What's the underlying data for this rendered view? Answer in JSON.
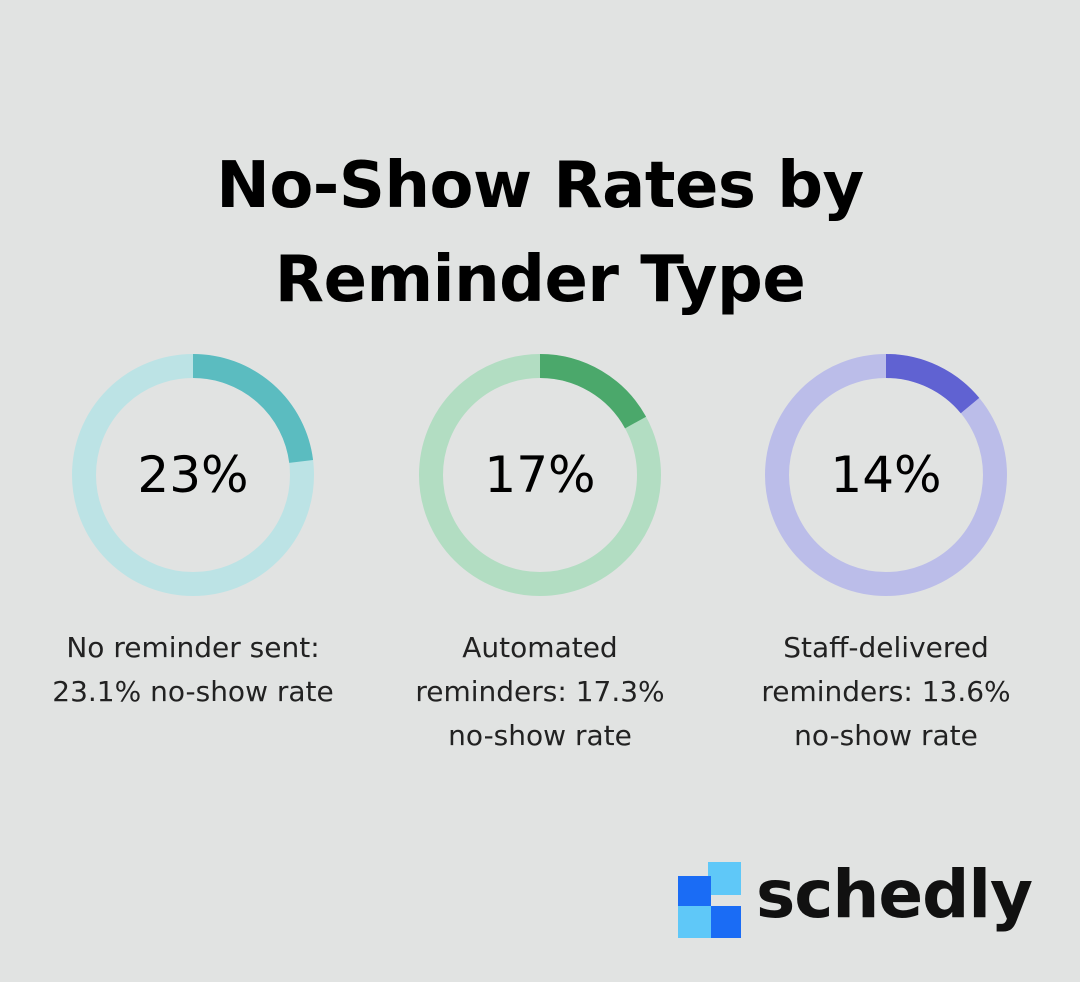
{
  "title": {
    "line1": "No-Show Rates by",
    "line2": "Reminder Type"
  },
  "chart_data": [
    {
      "type": "pie",
      "value": 23,
      "center_label": "23%",
      "caption": [
        "No reminder sent:",
        "23.1% no-show rate"
      ],
      "colors": {
        "value": "#5bbcc0",
        "track": "#bce3e5"
      }
    },
    {
      "type": "pie",
      "value": 17,
      "center_label": "17%",
      "caption": [
        "Automated",
        "reminders: 17.3%",
        "no-show rate"
      ],
      "colors": {
        "value": "#4ba86b",
        "track": "#b2ddc2"
      }
    },
    {
      "type": "pie",
      "value": 14,
      "center_label": "14%",
      "caption": [
        "Staff-delivered",
        "reminders: 13.6%",
        "no-show rate"
      ],
      "colors": {
        "value": "#6062d2",
        "track": "#bbbde9"
      }
    }
  ],
  "brand": {
    "name": "schedly",
    "logo_icon": "schedly-logo-icon",
    "colors": {
      "dark": "#1a6cf5",
      "light": "#5fc8f8"
    }
  }
}
